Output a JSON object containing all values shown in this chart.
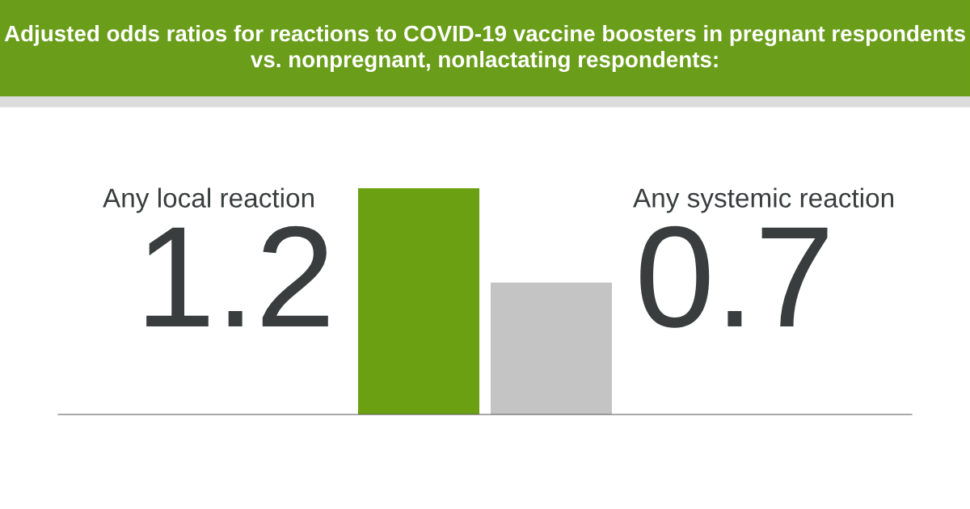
{
  "chart_data": {
    "type": "bar",
    "title": "Adjusted odds ratios for reactions to COVID-19 vaccine boosters in pregnant respondents vs. nonpregnant, nonlactating respondents:",
    "categories": [
      "Any local reaction",
      "Any systemic reaction"
    ],
    "values": [
      1.2,
      0.7
    ],
    "colors": [
      "#6aa012",
      "#c4c4c4"
    ],
    "data_labels": true
  }
}
